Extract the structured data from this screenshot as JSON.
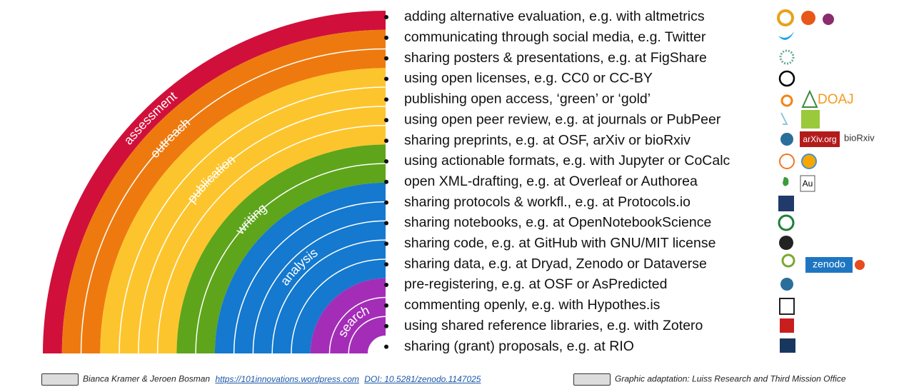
{
  "phases": [
    {
      "label": "assessment",
      "color": "#d0103a",
      "items": [
        "adding alternative evaluation, e.g. with altmetrics"
      ]
    },
    {
      "label": "outreach",
      "color": "#ee7a0f",
      "items": [
        "communicating through social media, e.g. Twitter",
        "sharing posters & presentations, e.g. at FigShare"
      ]
    },
    {
      "label": "publication",
      "color": "#fdc52d",
      "items": [
        "using open licenses, e.g. CC0 or CC-BY",
        "publishing open access, ‘green’ or ‘gold’",
        "using open peer review, e.g. at journals or PubPeer",
        "sharing preprints, e.g. at OSF, arXiv or bioRxiv"
      ]
    },
    {
      "label": "writing",
      "color": "#5ea51b",
      "items": [
        "using actionable formats, e.g. with Jupyter or CoCalc",
        "open XML-drafting, e.g. at Overleaf or Authorea"
      ]
    },
    {
      "label": "analysis",
      "color": "#1479cf",
      "items": [
        "sharing protocols & workfl., e.g. at Protocols.io",
        "sharing notebooks, e.g. at OpenNotebookScience",
        "sharing code, e.g. at GitHub with GNU/MIT license",
        "sharing data, e.g. at Dryad, Zenodo or Dataverse",
        "pre-registering, e.g. at OSF or AsPredicted"
      ]
    },
    {
      "label": "search",
      "color": "#a42db8",
      "items": [
        "commenting openly, e.g. with Hypothes.is",
        "using shared reference libraries, e.g. with Zotero",
        "sharing (grant) proposals, e.g. at RIO"
      ]
    }
  ],
  "icons": {
    "doaj": "DOAJ",
    "arxiv": "arXiv.org",
    "biorxiv": "bioRxiv",
    "zenodo": "zenodo",
    "authorea": "Au"
  },
  "footer": {
    "authors": "Bianca Kramer & Jeroen Bosman",
    "url": "https://101innovations.wordpress.com",
    "doi": "DOI: 10.5281/zenodo.1147025",
    "adaptation": "Graphic adaptation: Luiss Research and Third Mission Office"
  }
}
